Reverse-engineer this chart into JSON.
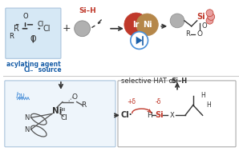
{
  "bg_color": "#ffffff",
  "top_left_box_color": "#d6e8f5",
  "top_left_box_edge": "#aac4dc",
  "acyl_text": "R",
  "acyl_cl": "Cl",
  "label1": "acylating agent",
  "label2": "Cl",
  "label2_sup": "−",
  "label3": " source",
  "sih_label": "Si–H",
  "ir_color": "#c0392b",
  "ni_color": "#b5874a",
  "led_circle_color": "#4a90d9",
  "led_color": "#1a5fa8",
  "product_si_color": "#c0392b",
  "arrow_color": "#333333",
  "hv_color": "#4a90d9",
  "cl_dot_color": "#c0392b",
  "si_neg_color": "#c0392b",
  "hat_title": "selective HAT of ",
  "hat_bold": "Si–H",
  "bottom_left_bg": "#eef5fb",
  "bottom_right_bg": "#ffffff",
  "gray_circle_color": "#b0b0b0",
  "ni_complex_color": "#4a90d9",
  "bottom_arrow_color": "#333333",
  "sep_line_color": "#cccccc"
}
